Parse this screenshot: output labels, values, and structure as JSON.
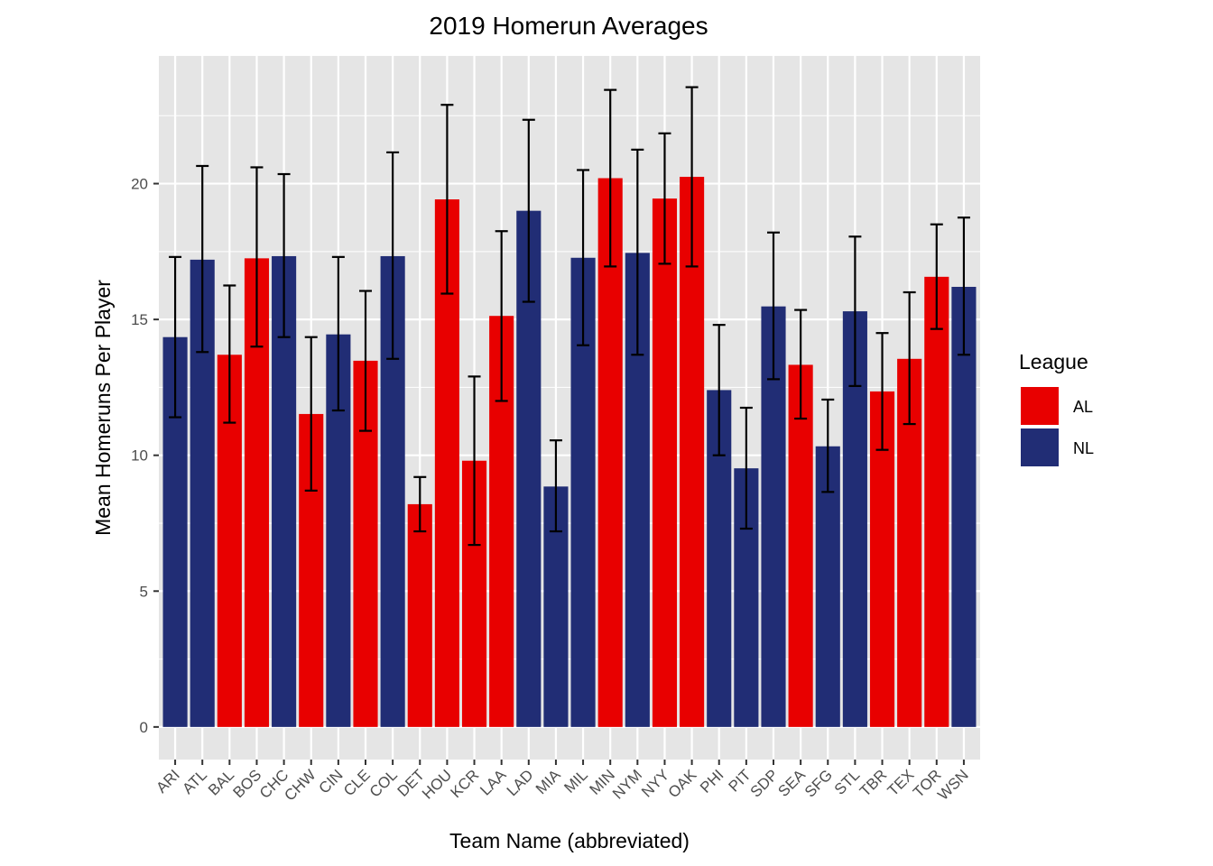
{
  "chart_data": {
    "type": "bar",
    "title": "2019 Homerun Averages",
    "xlabel": "Team Name (abbreviated)",
    "ylabel": "Mean Homeruns Per Player",
    "ylim": [
      0,
      24
    ],
    "yticks": [
      0,
      5,
      10,
      15,
      20
    ],
    "grid": true,
    "legend": {
      "title": "League",
      "position": "right",
      "entries": [
        "AL",
        "NL"
      ]
    },
    "colors": {
      "AL": "#e80000",
      "NL": "#212d75",
      "panel": "#e5e5e5",
      "grid": "#ffffff"
    },
    "categories": [
      "ARI",
      "ATL",
      "BAL",
      "BOS",
      "CHC",
      "CHW",
      "CIN",
      "CLE",
      "COL",
      "DET",
      "HOU",
      "KCR",
      "LAA",
      "LAD",
      "MIA",
      "MIL",
      "MIN",
      "NYM",
      "NYY",
      "OAK",
      "PHI",
      "PIT",
      "SDP",
      "SEA",
      "SFG",
      "STL",
      "TBR",
      "TEX",
      "TOR",
      "WSN"
    ],
    "league": [
      "NL",
      "NL",
      "AL",
      "AL",
      "NL",
      "AL",
      "NL",
      "AL",
      "NL",
      "AL",
      "AL",
      "AL",
      "AL",
      "NL",
      "NL",
      "NL",
      "AL",
      "NL",
      "AL",
      "AL",
      "NL",
      "NL",
      "NL",
      "AL",
      "NL",
      "NL",
      "AL",
      "AL",
      "AL",
      "NL"
    ],
    "values": [
      14.35,
      17.2,
      13.7,
      17.25,
      17.33,
      11.52,
      14.45,
      13.48,
      17.33,
      8.2,
      19.42,
      9.8,
      15.13,
      19.0,
      8.85,
      17.27,
      20.2,
      17.45,
      19.45,
      20.25,
      12.4,
      9.52,
      15.48,
      13.33,
      10.33,
      15.3,
      12.35,
      13.55,
      16.57,
      16.2
    ],
    "error_low": [
      11.4,
      13.8,
      11.2,
      14.0,
      14.35,
      8.7,
      11.65,
      10.9,
      13.55,
      7.2,
      15.95,
      6.7,
      12.0,
      15.65,
      7.2,
      14.05,
      16.95,
      13.7,
      17.05,
      16.95,
      10.0,
      7.3,
      12.8,
      11.35,
      8.65,
      12.55,
      10.2,
      11.15,
      14.65,
      13.7
    ],
    "error_high": [
      17.3,
      20.65,
      16.25,
      20.6,
      20.35,
      14.35,
      17.3,
      16.05,
      21.15,
      9.2,
      22.9,
      12.9,
      18.25,
      22.35,
      10.55,
      20.5,
      23.45,
      21.25,
      21.85,
      23.55,
      14.8,
      11.75,
      18.2,
      15.35,
      12.05,
      18.05,
      14.5,
      16.0,
      18.5,
      18.75
    ]
  }
}
